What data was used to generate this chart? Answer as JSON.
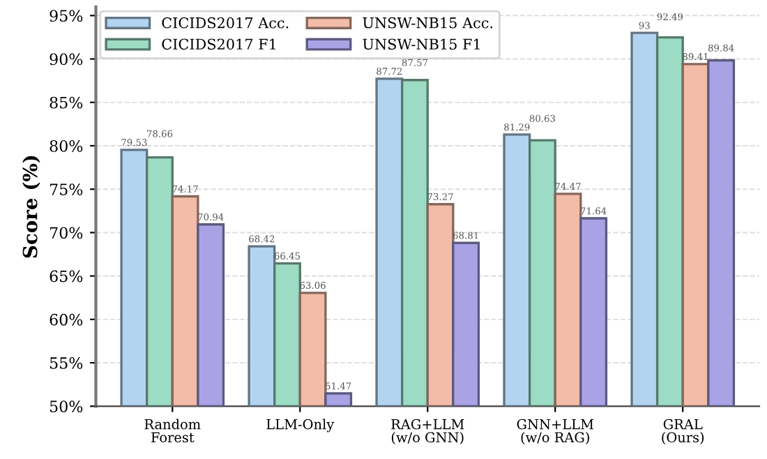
{
  "chart_data": {
    "type": "bar",
    "ylabel": "Score (%)",
    "categories": [
      "Random\nForest",
      "LLM-Only",
      "RAG+LLM\n(w/o GNN)",
      "GNN+LLM\n(w/o RAG)",
      "GRAL\n(Ours)"
    ],
    "series": [
      {
        "name": "CICIDS2017 Acc.",
        "color": "#b3d4f0",
        "values": [
          79.53,
          68.42,
          87.72,
          81.29,
          93
        ]
      },
      {
        "name": "CICIDS2017 F1",
        "color": "#9ddcc4",
        "values": [
          78.66,
          66.45,
          87.57,
          80.63,
          92.49
        ]
      },
      {
        "name": "UNSW-NB15 Acc.",
        "color": "#f2bca8",
        "values": [
          74.17,
          63.06,
          73.27,
          74.47,
          89.41
        ]
      },
      {
        "name": "UNSW-NB15 F1",
        "color": "#a9a3e6",
        "values": [
          70.94,
          51.47,
          68.81,
          71.64,
          89.84
        ]
      }
    ],
    "ylim": [
      50,
      96
    ],
    "yticks": [
      {
        "value": 50,
        "label": "50%"
      },
      {
        "value": 55,
        "label": "55%"
      },
      {
        "value": 60,
        "label": "60%"
      },
      {
        "value": 65,
        "label": "65%"
      },
      {
        "value": 70,
        "label": "70%"
      },
      {
        "value": 75,
        "label": "75%"
      },
      {
        "value": 80,
        "label": "80%"
      },
      {
        "value": 85,
        "label": "85%"
      },
      {
        "value": 90,
        "label": "90%"
      },
      {
        "value": 95,
        "label": "95%"
      }
    ],
    "grid": "y",
    "legend": "top left",
    "data_labels": true
  }
}
